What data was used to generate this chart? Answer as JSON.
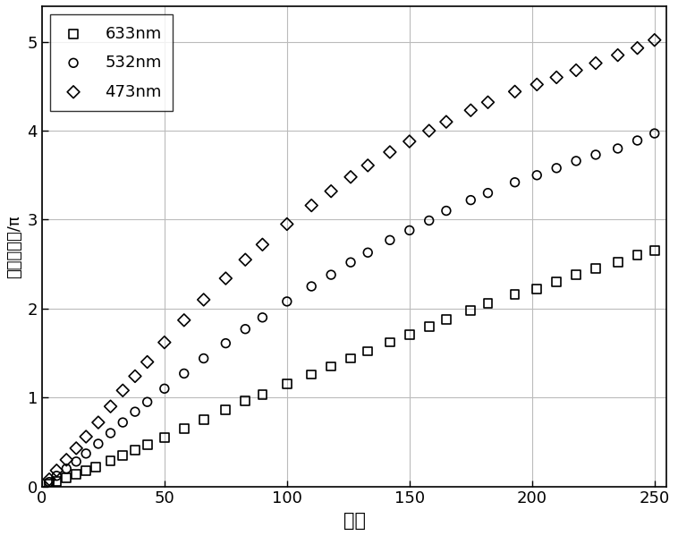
{
  "title": "",
  "xlabel": "灰度",
  "ylabel": "相位调制量/π",
  "xlim": [
    0,
    255
  ],
  "ylim": [
    0,
    5.4
  ],
  "xticks": [
    0,
    50,
    100,
    150,
    200,
    250
  ],
  "yticks": [
    0,
    1,
    2,
    3,
    4,
    5
  ],
  "legend_labels": [
    "633nm",
    "532nm",
    "473nm"
  ],
  "series_633_x": [
    3,
    6,
    10,
    14,
    18,
    22,
    28,
    33,
    38,
    43,
    50,
    58,
    66,
    75,
    83,
    90,
    100,
    110,
    118,
    126,
    133,
    142,
    150,
    158,
    165,
    175,
    182,
    193,
    202,
    210,
    218,
    226,
    235,
    243,
    250
  ],
  "series_633_y": [
    0.03,
    0.06,
    0.1,
    0.14,
    0.18,
    0.22,
    0.29,
    0.35,
    0.41,
    0.47,
    0.55,
    0.65,
    0.75,
    0.86,
    0.96,
    1.03,
    1.15,
    1.26,
    1.35,
    1.44,
    1.52,
    1.62,
    1.71,
    1.8,
    1.88,
    1.98,
    2.06,
    2.16,
    2.22,
    2.3,
    2.38,
    2.45,
    2.52,
    2.6,
    2.65
  ],
  "series_532_x": [
    3,
    6,
    10,
    14,
    18,
    23,
    28,
    33,
    38,
    43,
    50,
    58,
    66,
    75,
    83,
    90,
    100,
    110,
    118,
    126,
    133,
    142,
    150,
    158,
    165,
    175,
    182,
    193,
    202,
    210,
    218,
    226,
    235,
    243,
    250
  ],
  "series_532_y": [
    0.05,
    0.12,
    0.2,
    0.28,
    0.37,
    0.48,
    0.6,
    0.72,
    0.84,
    0.95,
    1.1,
    1.27,
    1.44,
    1.61,
    1.77,
    1.9,
    2.08,
    2.25,
    2.38,
    2.52,
    2.63,
    2.77,
    2.88,
    2.99,
    3.1,
    3.22,
    3.3,
    3.42,
    3.5,
    3.58,
    3.66,
    3.73,
    3.8,
    3.89,
    3.97
  ],
  "series_473_x": [
    3,
    6,
    10,
    14,
    18,
    23,
    28,
    33,
    38,
    43,
    50,
    58,
    66,
    75,
    83,
    90,
    100,
    110,
    118,
    126,
    133,
    142,
    150,
    158,
    165,
    175,
    182,
    193,
    202,
    210,
    218,
    226,
    235,
    243,
    250
  ],
  "series_473_y": [
    0.08,
    0.18,
    0.3,
    0.43,
    0.56,
    0.72,
    0.9,
    1.08,
    1.24,
    1.4,
    1.62,
    1.87,
    2.1,
    2.34,
    2.55,
    2.72,
    2.95,
    3.16,
    3.32,
    3.48,
    3.61,
    3.76,
    3.88,
    4.0,
    4.1,
    4.23,
    4.32,
    4.44,
    4.52,
    4.6,
    4.68,
    4.76,
    4.85,
    4.93,
    5.02
  ],
  "curve_color": "#000000",
  "marker_color": "#000000",
  "marker_size": 7,
  "line_width": 2.8,
  "background_color": "#ffffff",
  "grid_color": "#bbbbbb"
}
